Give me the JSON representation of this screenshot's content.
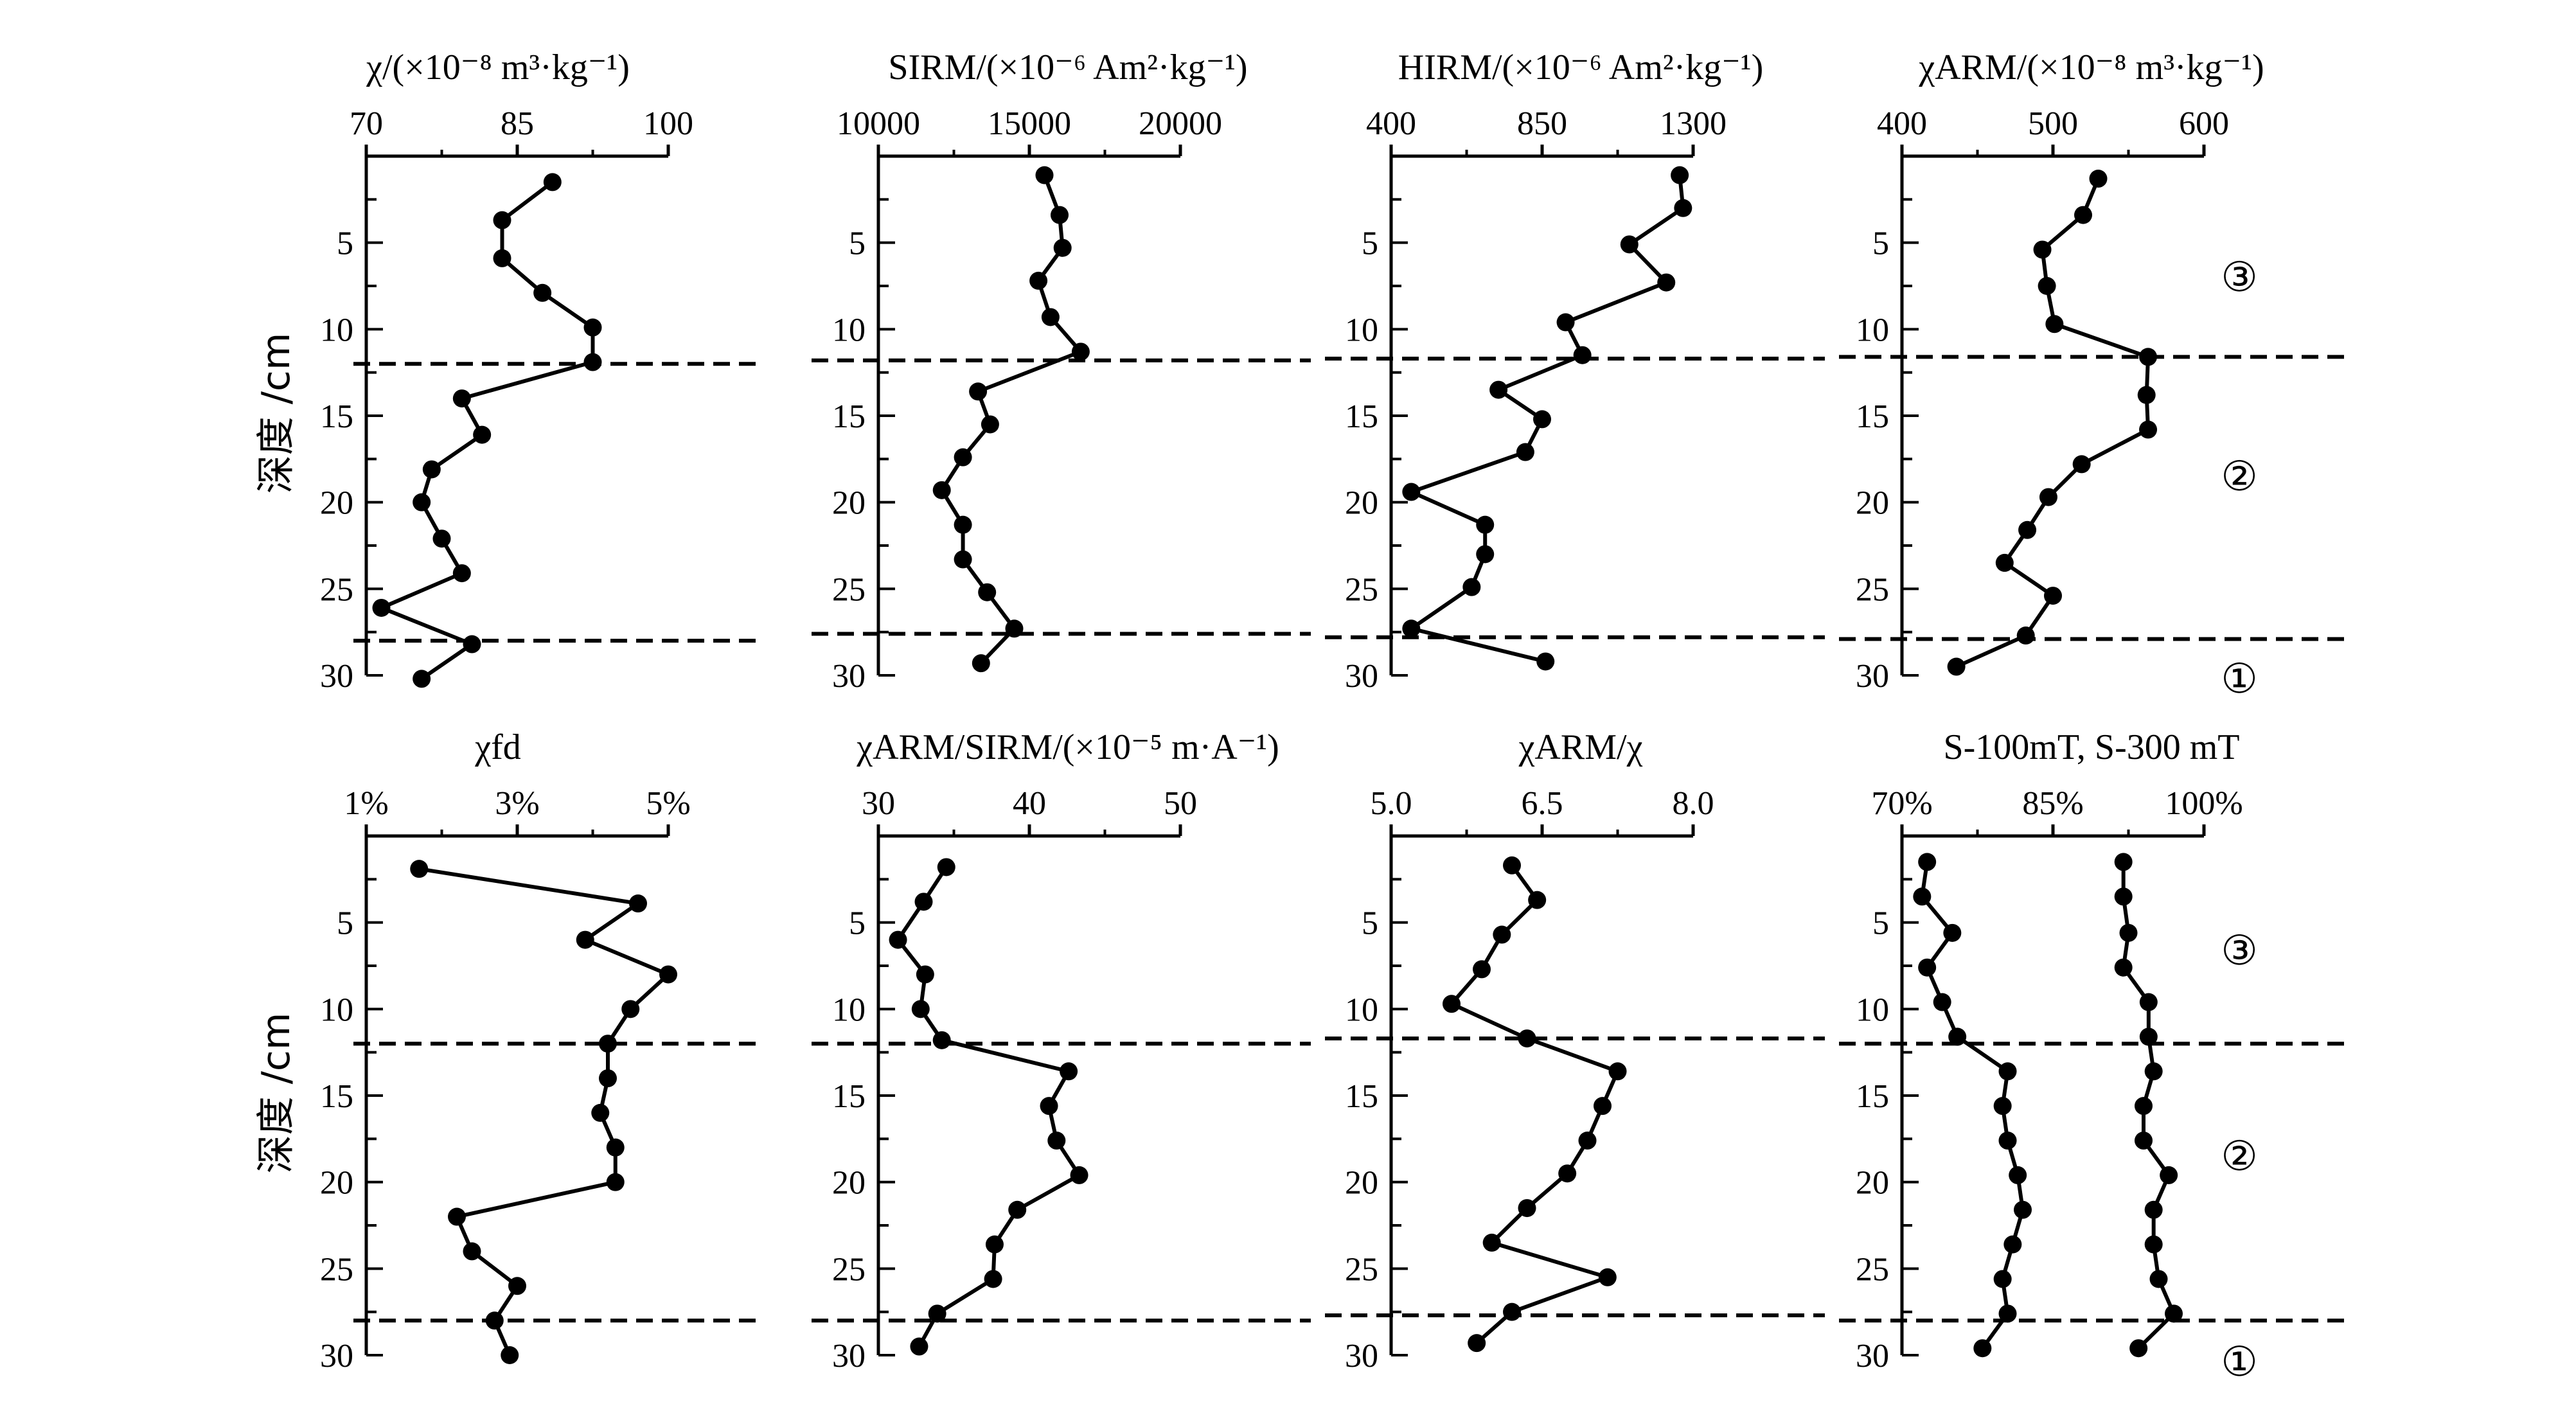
{
  "figure": {
    "ylabel": "深度 /cm",
    "zone_labels": {
      "z3": "③",
      "z2": "②",
      "z1": "①"
    }
  },
  "chart_data": [
    {
      "type": "line",
      "orientation": "vertical-depth-profile",
      "title": "χ/(×10⁻⁸ m³·kg⁻¹)",
      "xticks": [
        70,
        85,
        100
      ],
      "xlim": [
        70,
        100
      ],
      "ylim": [
        0,
        30
      ],
      "yticks": [
        5,
        10,
        15,
        20,
        25,
        30
      ],
      "ylabel": "深度 /cm",
      "grid": false,
      "boundaries": [
        12,
        28
      ],
      "series": [
        {
          "values": [
            {
              "x": 88.5,
              "depth": 1.5
            },
            {
              "x": 83.5,
              "depth": 3.7
            },
            {
              "x": 83.5,
              "depth": 5.9
            },
            {
              "x": 87.5,
              "depth": 7.9
            },
            {
              "x": 92.5,
              "depth": 9.9
            },
            {
              "x": 92.5,
              "depth": 11.9
            },
            {
              "x": 79.5,
              "depth": 14.0
            },
            {
              "x": 81.5,
              "depth": 16.1
            },
            {
              "x": 76.5,
              "depth": 18.1
            },
            {
              "x": 75.5,
              "depth": 20.0
            },
            {
              "x": 77.5,
              "depth": 22.1
            },
            {
              "x": 79.5,
              "depth": 24.1
            },
            {
              "x": 71.5,
              "depth": 26.1
            },
            {
              "x": 80.5,
              "depth": 28.2
            },
            {
              "x": 75.5,
              "depth": 30.2
            }
          ]
        }
      ]
    },
    {
      "type": "line",
      "orientation": "vertical-depth-profile",
      "title": "SIRM/(×10⁻⁶ Am²·kg⁻¹)",
      "xticks": [
        10000,
        15000,
        20000
      ],
      "xlim": [
        10000,
        20000
      ],
      "ylim": [
        0,
        30
      ],
      "yticks": [
        5,
        10,
        15,
        20,
        25,
        30
      ],
      "grid": false,
      "boundaries": [
        11.8,
        27.6
      ],
      "series": [
        {
          "values": [
            {
              "x": 15500,
              "depth": 1.1
            },
            {
              "x": 16000,
              "depth": 3.4
            },
            {
              "x": 16100,
              "depth": 5.3
            },
            {
              "x": 15300,
              "depth": 7.2
            },
            {
              "x": 15700,
              "depth": 9.3
            },
            {
              "x": 16700,
              "depth": 11.3
            },
            {
              "x": 13300,
              "depth": 13.6
            },
            {
              "x": 13700,
              "depth": 15.5
            },
            {
              "x": 12800,
              "depth": 17.4
            },
            {
              "x": 12100,
              "depth": 19.3
            },
            {
              "x": 12800,
              "depth": 21.3
            },
            {
              "x": 12800,
              "depth": 23.3
            },
            {
              "x": 13600,
              "depth": 25.2
            },
            {
              "x": 14500,
              "depth": 27.3
            },
            {
              "x": 13400,
              "depth": 29.3
            }
          ]
        }
      ]
    },
    {
      "type": "line",
      "orientation": "vertical-depth-profile",
      "title": "HIRM/(×10⁻⁶ Am²·kg⁻¹)",
      "xticks": [
        400,
        850,
        1300
      ],
      "xlim": [
        400,
        1300
      ],
      "ylim": [
        0,
        30
      ],
      "yticks": [
        5,
        10,
        15,
        20,
        25,
        30
      ],
      "grid": false,
      "boundaries": [
        11.7,
        27.8
      ],
      "series": [
        {
          "values": [
            {
              "x": 1260,
              "depth": 1.1
            },
            {
              "x": 1270,
              "depth": 3.0
            },
            {
              "x": 1110,
              "depth": 5.1
            },
            {
              "x": 1220,
              "depth": 7.3
            },
            {
              "x": 920,
              "depth": 9.6
            },
            {
              "x": 970,
              "depth": 11.5
            },
            {
              "x": 720,
              "depth": 13.5
            },
            {
              "x": 850,
              "depth": 15.2
            },
            {
              "x": 800,
              "depth": 17.1
            },
            {
              "x": 460,
              "depth": 19.4
            },
            {
              "x": 680,
              "depth": 21.3
            },
            {
              "x": 680,
              "depth": 23.0
            },
            {
              "x": 640,
              "depth": 24.9
            },
            {
              "x": 460,
              "depth": 27.3
            },
            {
              "x": 860,
              "depth": 29.2
            }
          ]
        }
      ]
    },
    {
      "type": "line",
      "orientation": "vertical-depth-profile",
      "title": "χARM/(×10⁻⁸ m³·kg⁻¹)",
      "xticks": [
        400,
        500,
        600
      ],
      "xlim": [
        400,
        600
      ],
      "ylim": [
        0,
        30
      ],
      "yticks": [
        5,
        10,
        15,
        20,
        25,
        30
      ],
      "grid": false,
      "boundaries": [
        11.6,
        27.9
      ],
      "series": [
        {
          "values": [
            {
              "x": 530,
              "depth": 1.3
            },
            {
              "x": 520,
              "depth": 3.4
            },
            {
              "x": 493,
              "depth": 5.4
            },
            {
              "x": 496,
              "depth": 7.5
            },
            {
              "x": 501,
              "depth": 9.7
            },
            {
              "x": 563,
              "depth": 11.6
            },
            {
              "x": 562,
              "depth": 13.8
            },
            {
              "x": 563,
              "depth": 15.8
            },
            {
              "x": 519,
              "depth": 17.8
            },
            {
              "x": 497,
              "depth": 19.7
            },
            {
              "x": 483,
              "depth": 21.6
            },
            {
              "x": 468,
              "depth": 23.5
            },
            {
              "x": 500,
              "depth": 25.4
            },
            {
              "x": 482,
              "depth": 27.7
            },
            {
              "x": 436,
              "depth": 29.5
            }
          ]
        }
      ]
    },
    {
      "type": "line",
      "orientation": "vertical-depth-profile",
      "title": "χfd",
      "xticks": [
        "1%",
        "3%",
        "5%"
      ],
      "xlim": [
        1,
        5
      ],
      "x_unit": "%",
      "ylim": [
        0,
        30
      ],
      "yticks": [
        5,
        10,
        15,
        20,
        25,
        30
      ],
      "ylabel": "深度 /cm",
      "grid": false,
      "boundaries": [
        12,
        28
      ],
      "series": [
        {
          "values": [
            {
              "x": 1.7,
              "depth": 1.9
            },
            {
              "x": 4.6,
              "depth": 3.9
            },
            {
              "x": 3.9,
              "depth": 6.0
            },
            {
              "x": 5.0,
              "depth": 8.0
            },
            {
              "x": 4.5,
              "depth": 10.0
            },
            {
              "x": 4.2,
              "depth": 12.0
            },
            {
              "x": 4.2,
              "depth": 14.0
            },
            {
              "x": 4.1,
              "depth": 16.0
            },
            {
              "x": 4.3,
              "depth": 18.0
            },
            {
              "x": 4.3,
              "depth": 20.0
            },
            {
              "x": 2.2,
              "depth": 22.0
            },
            {
              "x": 2.4,
              "depth": 24.0
            },
            {
              "x": 3.0,
              "depth": 26.0
            },
            {
              "x": 2.7,
              "depth": 28.0
            },
            {
              "x": 2.9,
              "depth": 30.0
            }
          ]
        }
      ]
    },
    {
      "type": "line",
      "orientation": "vertical-depth-profile",
      "title": "χARM/SIRM/(×10⁻⁵ m·A⁻¹)",
      "xticks": [
        30,
        40,
        50
      ],
      "xlim": [
        30,
        50
      ],
      "ylim": [
        0,
        30
      ],
      "yticks": [
        5,
        10,
        15,
        20,
        25,
        30
      ],
      "grid": false,
      "boundaries": [
        12,
        28
      ],
      "series": [
        {
          "values": [
            {
              "x": 34.5,
              "depth": 1.8
            },
            {
              "x": 33.0,
              "depth": 3.8
            },
            {
              "x": 31.3,
              "depth": 6.0
            },
            {
              "x": 33.1,
              "depth": 8.0
            },
            {
              "x": 32.8,
              "depth": 10.0
            },
            {
              "x": 34.2,
              "depth": 11.8
            },
            {
              "x": 42.6,
              "depth": 13.6
            },
            {
              "x": 41.3,
              "depth": 15.6
            },
            {
              "x": 41.8,
              "depth": 17.6
            },
            {
              "x": 43.3,
              "depth": 19.6
            },
            {
              "x": 39.2,
              "depth": 21.6
            },
            {
              "x": 37.7,
              "depth": 23.6
            },
            {
              "x": 37.6,
              "depth": 25.6
            },
            {
              "x": 33.9,
              "depth": 27.6
            },
            {
              "x": 32.7,
              "depth": 29.5
            }
          ]
        }
      ]
    },
    {
      "type": "line",
      "orientation": "vertical-depth-profile",
      "title": "χARM/χ",
      "xticks": [
        5.0,
        6.5,
        8.0
      ],
      "xtick_labels": [
        "5.0",
        "6.5",
        "8.0"
      ],
      "xlim": [
        5.0,
        8.0
      ],
      "ylim": [
        0,
        30
      ],
      "yticks": [
        5,
        10,
        15,
        20,
        25,
        30
      ],
      "grid": false,
      "boundaries": [
        11.7,
        27.7
      ],
      "series": [
        {
          "values": [
            {
              "x": 6.2,
              "depth": 1.7
            },
            {
              "x": 6.45,
              "depth": 3.7
            },
            {
              "x": 6.1,
              "depth": 5.7
            },
            {
              "x": 5.9,
              "depth": 7.7
            },
            {
              "x": 5.6,
              "depth": 9.7
            },
            {
              "x": 6.35,
              "depth": 11.7
            },
            {
              "x": 7.25,
              "depth": 13.6
            },
            {
              "x": 7.1,
              "depth": 15.6
            },
            {
              "x": 6.95,
              "depth": 17.6
            },
            {
              "x": 6.75,
              "depth": 19.5
            },
            {
              "x": 6.35,
              "depth": 21.5
            },
            {
              "x": 6.0,
              "depth": 23.5
            },
            {
              "x": 7.15,
              "depth": 25.5
            },
            {
              "x": 6.2,
              "depth": 27.5
            },
            {
              "x": 5.85,
              "depth": 29.3
            }
          ]
        }
      ]
    },
    {
      "type": "line",
      "orientation": "vertical-depth-profile",
      "title": "S-100mT, S-300 mT",
      "xticks": [
        "70%",
        "85%",
        "100%"
      ],
      "xlim": [
        70,
        100
      ],
      "x_unit": "%",
      "ylim": [
        0,
        30
      ],
      "yticks": [
        5,
        10,
        15,
        20,
        25,
        30
      ],
      "grid": false,
      "boundaries": [
        12,
        28
      ],
      "series": [
        {
          "values": [
            {
              "x": 72.5,
              "depth": 1.5
            },
            {
              "x": 72.0,
              "depth": 3.5
            },
            {
              "x": 75.0,
              "depth": 5.6
            },
            {
              "x": 72.5,
              "depth": 7.6
            },
            {
              "x": 74.0,
              "depth": 9.6
            },
            {
              "x": 75.5,
              "depth": 11.6
            },
            {
              "x": 80.5,
              "depth": 13.6
            },
            {
              "x": 80.0,
              "depth": 15.6
            },
            {
              "x": 80.5,
              "depth": 17.6
            },
            {
              "x": 81.5,
              "depth": 19.6
            },
            {
              "x": 82.0,
              "depth": 21.6
            },
            {
              "x": 81.0,
              "depth": 23.6
            },
            {
              "x": 80.0,
              "depth": 25.6
            },
            {
              "x": 80.5,
              "depth": 27.6
            },
            {
              "x": 78.0,
              "depth": 29.6
            }
          ]
        },
        {
          "values": [
            {
              "x": 92.0,
              "depth": 1.5
            },
            {
              "x": 92.0,
              "depth": 3.5
            },
            {
              "x": 92.5,
              "depth": 5.6
            },
            {
              "x": 92.0,
              "depth": 7.6
            },
            {
              "x": 94.5,
              "depth": 9.6
            },
            {
              "x": 94.5,
              "depth": 11.6
            },
            {
              "x": 95.0,
              "depth": 13.6
            },
            {
              "x": 94.0,
              "depth": 15.6
            },
            {
              "x": 94.0,
              "depth": 17.6
            },
            {
              "x": 96.5,
              "depth": 19.6
            },
            {
              "x": 95.0,
              "depth": 21.6
            },
            {
              "x": 95.0,
              "depth": 23.6
            },
            {
              "x": 95.5,
              "depth": 25.6
            },
            {
              "x": 97.0,
              "depth": 27.6
            },
            {
              "x": 93.5,
              "depth": 29.6
            }
          ]
        }
      ]
    }
  ]
}
